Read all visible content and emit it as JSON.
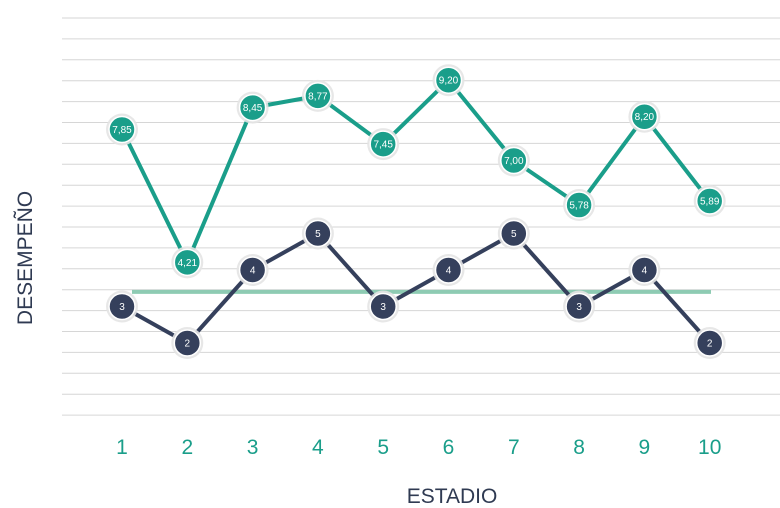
{
  "chart_data": {
    "type": "line",
    "xlabel": "ESTADIO",
    "ylabel": "DESEMPEÑO",
    "categories": [
      "1",
      "2",
      "3",
      "4",
      "5",
      "6",
      "7",
      "8",
      "9",
      "10"
    ],
    "ylim": [
      0,
      10
    ],
    "grid": true,
    "legend": "none",
    "series": [
      {
        "values": [
          7.85,
          4.21,
          8.45,
          8.77,
          7.45,
          9.2,
          7.0,
          5.78,
          8.2,
          5.89
        ],
        "point_labels": [
          "7,85",
          "4,21",
          "8,45",
          "8,77",
          "7,45",
          "9,20",
          "7,00",
          "5,78",
          "8,20",
          "5,89"
        ],
        "color": "#1a9e8a"
      },
      {
        "values": [
          3,
          2,
          4,
          5,
          3,
          4,
          5,
          3,
          4,
          2
        ],
        "point_labels": [
          "3",
          "2",
          "4",
          "5",
          "3",
          "4",
          "5",
          "3",
          "4",
          "2"
        ],
        "color": "#35405c"
      }
    ],
    "reference_line": {
      "value": 3.4,
      "color": "#8ecbb3"
    },
    "tick_color": "#1a9e8a",
    "grid_color": "#d6d6d6"
  }
}
